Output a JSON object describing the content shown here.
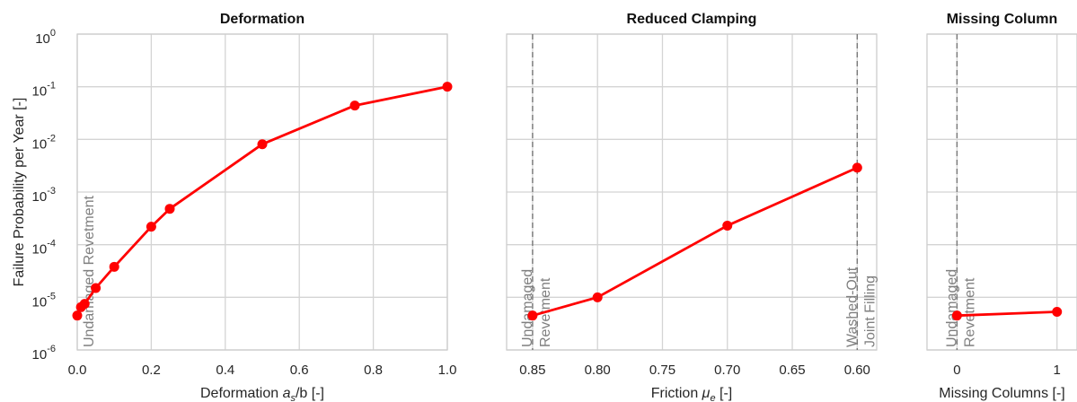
{
  "y_label": "Failure Probability per Year [-]",
  "y_ticks": [
    {
      "base": "10",
      "exp": "0",
      "value": 1
    },
    {
      "base": "10",
      "exp": "-1",
      "value": 0.1
    },
    {
      "base": "10",
      "exp": "-2",
      "value": 0.01
    },
    {
      "base": "10",
      "exp": "-3",
      "value": 0.001
    },
    {
      "base": "10",
      "exp": "-4",
      "value": 0.0001
    },
    {
      "base": "10",
      "exp": "-5",
      "value": 1e-05
    },
    {
      "base": "10",
      "exp": "-6",
      "value": 1e-06
    }
  ],
  "series_color": "#ff0000",
  "annotation_color": "#7f7f7f",
  "panels": [
    {
      "title": "Deformation",
      "xlabel_parts": [
        "Deformation ",
        "a",
        "s",
        "/b [-]"
      ],
      "x_ticks": [
        "0.0",
        "0.2",
        "0.4",
        "0.6",
        "0.8",
        "1.0"
      ],
      "annotations": [
        [
          "Undamaged Revetment"
        ]
      ]
    },
    {
      "title": "Reduced Clamping",
      "xlabel_parts": [
        "Friction ",
        "μ",
        "e",
        " [-]"
      ],
      "x_ticks": [
        "0.85",
        "0.80",
        "0.75",
        "0.70",
        "0.65",
        "0.60"
      ],
      "annotations": [
        [
          "Undamaged",
          "Revetment"
        ],
        [
          "Washed-Out",
          "Joint Filling"
        ]
      ]
    },
    {
      "title": "Missing Column",
      "xlabel_parts": [
        "Missing Columns [-]",
        "",
        "",
        ""
      ],
      "x_ticks": [
        "0",
        "1"
      ],
      "annotations": [
        [
          "Undamaged",
          "Revetment"
        ]
      ]
    }
  ],
  "chart_data": [
    {
      "type": "line",
      "title": "Deformation",
      "xlabel": "Deformation a_s/b [-]",
      "ylabel": "Failure Probability per Year [-]",
      "x": [
        0,
        0.01,
        0.02,
        0.05,
        0.1,
        0.2,
        0.25,
        0.5,
        0.75,
        1.0
      ],
      "y": [
        4.5e-06,
        6.5e-06,
        7.5e-06,
        1.5e-05,
        3.8e-05,
        0.00022,
        0.00048,
        0.0081,
        0.044,
        0.1
      ],
      "xlim": [
        0,
        1.0
      ],
      "ylim": [
        1,
        1e-06
      ],
      "yscale": "log",
      "y_axis_inverted": true,
      "grid": true
    },
    {
      "type": "line",
      "title": "Reduced Clamping",
      "xlabel": "Friction μ_e [-]",
      "x": [
        0.85,
        0.8,
        0.7,
        0.6
      ],
      "y": [
        4.5e-06,
        1e-05,
        0.00023,
        0.0029
      ],
      "xlim": [
        0.87,
        0.585
      ],
      "ylim": [
        1,
        1e-06
      ],
      "yscale": "log",
      "y_axis_inverted": true,
      "grid": true
    },
    {
      "type": "line",
      "title": "Missing Column",
      "xlabel": "Missing Columns [-]",
      "x": [
        0,
        1
      ],
      "y": [
        4.5e-06,
        5.3e-06
      ],
      "xlim": [
        -0.3,
        1.2
      ],
      "ylim": [
        1,
        1e-06
      ],
      "yscale": "log",
      "y_axis_inverted": true,
      "grid": true
    }
  ]
}
